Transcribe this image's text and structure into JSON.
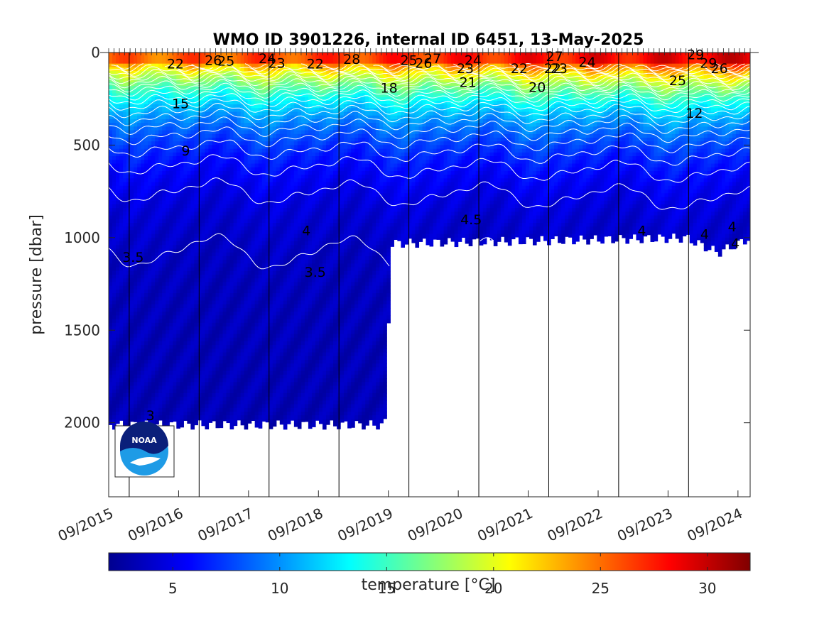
{
  "chart_data": {
    "type": "heatmap",
    "title": "WMO ID 3901226, internal ID 6451, 13-May-2025",
    "ylabel": "pressure [dbar]",
    "xlabel": "",
    "ylim": [
      2400,
      0
    ],
    "y_ticks": [
      0,
      500,
      1000,
      1500,
      2000
    ],
    "x_ticks": [
      "09/2015",
      "09/2016",
      "09/2017",
      "09/2018",
      "09/2019",
      "09/2020",
      "09/2021",
      "09/2022",
      "09/2023",
      "09/2024"
    ],
    "x_tick_fraction": [
      0.0,
      0.109,
      0.218,
      0.327,
      0.436,
      0.545,
      0.654,
      0.763,
      0.872,
      0.981
    ],
    "year_markers_fraction": [
      0.032,
      0.141,
      0.25,
      0.359,
      0.468,
      0.577,
      0.686,
      0.795,
      0.904
    ],
    "colorbar": {
      "label": "temperature [°C]",
      "range": [
        2,
        32
      ],
      "ticks": [
        5,
        10,
        15,
        20,
        25,
        30
      ],
      "colormap": "jet"
    },
    "profile_depth": {
      "x_fraction": [
        0.0,
        0.43,
        0.431,
        0.44,
        0.9,
        0.95,
        1.0
      ],
      "max_pressure": [
        2010,
        2010,
        1990,
        1030,
        1000,
        1080,
        1000
      ]
    },
    "contour_labels": [
      {
        "text": "22",
        "x": 0.104,
        "p": 60
      },
      {
        "text": "26",
        "x": 0.163,
        "p": 40
      },
      {
        "text": "25",
        "x": 0.183,
        "p": 45
      },
      {
        "text": "24",
        "x": 0.247,
        "p": 30
      },
      {
        "text": "23",
        "x": 0.262,
        "p": 55
      },
      {
        "text": "22",
        "x": 0.322,
        "p": 60
      },
      {
        "text": "28",
        "x": 0.379,
        "p": 35
      },
      {
        "text": "18",
        "x": 0.437,
        "p": 190
      },
      {
        "text": "25",
        "x": 0.468,
        "p": 40
      },
      {
        "text": "26",
        "x": 0.491,
        "p": 55
      },
      {
        "text": "27",
        "x": 0.505,
        "p": 30
      },
      {
        "text": "24",
        "x": 0.568,
        "p": 40
      },
      {
        "text": "23",
        "x": 0.556,
        "p": 85
      },
      {
        "text": "21",
        "x": 0.56,
        "p": 160
      },
      {
        "text": "22",
        "x": 0.64,
        "p": 85
      },
      {
        "text": "20",
        "x": 0.668,
        "p": 185
      },
      {
        "text": "27",
        "x": 0.695,
        "p": 20
      },
      {
        "text": "22",
        "x": 0.692,
        "p": 85
      },
      {
        "text": "23",
        "x": 0.702,
        "p": 85
      },
      {
        "text": "24",
        "x": 0.746,
        "p": 50
      },
      {
        "text": "29",
        "x": 0.915,
        "p": 10
      },
      {
        "text": "25",
        "x": 0.887,
        "p": 150
      },
      {
        "text": "29",
        "x": 0.935,
        "p": 55
      },
      {
        "text": "26",
        "x": 0.952,
        "p": 85
      },
      {
        "text": "12",
        "x": 0.913,
        "p": 325
      },
      {
        "text": "15",
        "x": 0.112,
        "p": 275
      },
      {
        "text": "9",
        "x": 0.12,
        "p": 530
      },
      {
        "text": "4",
        "x": 0.308,
        "p": 960
      },
      {
        "text": "4.5",
        "x": 0.565,
        "p": 900
      },
      {
        "text": "4",
        "x": 0.831,
        "p": 960
      },
      {
        "text": "4",
        "x": 0.929,
        "p": 980
      },
      {
        "text": "4",
        "x": 0.972,
        "p": 940
      },
      {
        "text": "4",
        "x": 0.977,
        "p": 1030
      },
      {
        "text": "3.5",
        "x": 0.038,
        "p": 1105
      },
      {
        "text": "3.5",
        "x": 0.322,
        "p": 1185
      },
      {
        "text": "3",
        "x": 0.065,
        "p": 1960
      }
    ]
  },
  "logo": {
    "text": "NOAA"
  }
}
